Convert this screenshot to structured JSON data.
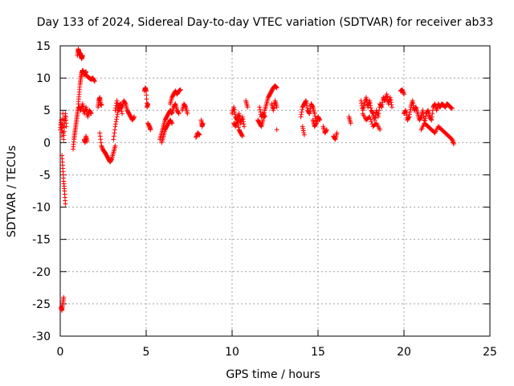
{
  "chart_data": {
    "type": "scatter",
    "title": "Day 133 of 2024, Sidereal Day-to-day VTEC variation (SDTVAR) for receiver ab33",
    "xlabel": "GPS time / hours",
    "ylabel": "SDTVAR / TECUs",
    "xlim": [
      0,
      25
    ],
    "ylim": [
      -30,
      15
    ],
    "xticks": [
      "0",
      "5",
      "10",
      "15",
      "20",
      "25"
    ],
    "yticks": [
      "15",
      "10",
      "5",
      "0",
      "-5",
      "-10",
      "-15",
      "-20",
      "-25",
      "-30"
    ],
    "grid": true,
    "marker": "+",
    "color": "#ff0000",
    "series": [
      {
        "name": "SDTVAR",
        "segments": [
          {
            "x": [
              0.0,
              0.05,
              0.1,
              0.15,
              0.2,
              0.25,
              0.3,
              0.35
            ],
            "y": [
              2.0,
              3.5,
              1.0,
              4.5,
              0.5,
              3.0,
              4.5,
              2.5
            ]
          },
          {
            "x": [
              0.1,
              0.15,
              0.2,
              0.25,
              0.3
            ],
            "y": [
              -2.0,
              -4.0,
              -6.0,
              -7.5,
              -9.5
            ]
          },
          {
            "x": [
              0.05,
              0.1,
              0.15,
              0.2
            ],
            "y": [
              -25.5,
              -26.0,
              -25.0,
              -24.0
            ]
          },
          {
            "x": [
              0.75,
              0.8,
              0.85,
              0.9,
              0.95,
              1.0,
              1.05
            ],
            "y": [
              -1.0,
              0.5,
              1.5,
              2.5,
              3.5,
              4.5,
              5.5
            ]
          },
          {
            "x": [
              1.0,
              1.05,
              1.1,
              1.15,
              1.2,
              1.25,
              1.3
            ],
            "y": [
              13.5,
              14.5,
              14.0,
              13.8,
              13.5,
              13.0,
              13.5
            ]
          },
          {
            "x": [
              1.05,
              1.1,
              1.15,
              1.2,
              1.25,
              1.3,
              1.35,
              1.4,
              1.45,
              1.5
            ],
            "y": [
              6.0,
              7.5,
              9.0,
              10.0,
              10.8,
              11.2,
              11.0,
              10.5,
              10.8,
              11.0
            ]
          },
          {
            "x": [
              1.5,
              1.6,
              1.7,
              1.8,
              1.9,
              2.0
            ],
            "y": [
              10.5,
              10.2,
              10.0,
              9.8,
              10.0,
              9.5
            ]
          },
          {
            "x": [
              1.1,
              1.2,
              1.3,
              1.4,
              1.5,
              1.6,
              1.7,
              1.8
            ],
            "y": [
              5.5,
              5.0,
              6.0,
              4.5,
              5.5,
              4.0,
              5.0,
              4.5
            ]
          },
          {
            "x": [
              1.4,
              1.45,
              1.5,
              1.55
            ],
            "y": [
              0.5,
              0.0,
              1.0,
              0.2
            ]
          },
          {
            "x": [
              2.2,
              2.25,
              2.3,
              2.35,
              2.4
            ],
            "y": [
              5.5,
              6.5,
              7.0,
              6.0,
              5.8
            ]
          },
          {
            "x": [
              2.3,
              2.4,
              2.5,
              2.6
            ],
            "y": [
              1.5,
              -0.5,
              -1.2,
              -1.5
            ]
          },
          {
            "x": [
              2.6,
              2.7,
              2.8,
              2.9,
              3.0,
              3.1,
              3.2
            ],
            "y": [
              -1.5,
              -2.0,
              -2.5,
              -3.0,
              -2.5,
              -1.5,
              -0.5
            ]
          },
          {
            "x": [
              3.1,
              3.2,
              3.3,
              3.4,
              3.5,
              3.6,
              3.7,
              3.8,
              3.9,
              4.0,
              4.1,
              4.2,
              4.3
            ],
            "y": [
              0.5,
              2.5,
              4.0,
              5.5,
              6.0,
              5.5,
              6.5,
              6.0,
              5.0,
              4.5,
              4.0,
              3.5,
              4.0
            ]
          },
          {
            "x": [
              3.2,
              3.3,
              3.4,
              3.5,
              3.6
            ],
            "y": [
              5.0,
              6.5,
              5.0,
              6.0,
              4.5
            ]
          },
          {
            "x": [
              4.9,
              4.95,
              5.0,
              5.05,
              5.1
            ],
            "y": [
              8.0,
              8.5,
              8.0,
              5.5,
              6.0
            ]
          },
          {
            "x": [
              5.1,
              5.2,
              5.25
            ],
            "y": [
              3.0,
              2.5,
              2.0
            ]
          },
          {
            "x": [
              5.8,
              5.9,
              6.0,
              6.1,
              6.2,
              6.3,
              6.4,
              6.5,
              6.6,
              6.7,
              6.8,
              6.9
            ],
            "y": [
              0.5,
              1.5,
              2.5,
              3.5,
              4.0,
              4.5,
              5.0,
              4.5,
              5.5,
              6.0,
              5.0,
              4.5
            ]
          },
          {
            "x": [
              5.9,
              6.0,
              6.1,
              6.2,
              6.3,
              6.4,
              6.5
            ],
            "y": [
              0.0,
              1.0,
              2.0,
              2.5,
              3.0,
              3.5,
              3.0
            ]
          },
          {
            "x": [
              6.4,
              6.5,
              6.6,
              6.7,
              6.8,
              6.9,
              7.0
            ],
            "y": [
              6.0,
              7.0,
              7.5,
              8.0,
              7.5,
              8.0,
              8.2
            ]
          },
          {
            "x": [
              7.1,
              7.2,
              7.3,
              7.4
            ],
            "y": [
              5.0,
              6.0,
              5.5,
              4.5
            ]
          },
          {
            "x": [
              7.9,
              8.0,
              8.1
            ],
            "y": [
              0.8,
              1.5,
              1.2
            ]
          },
          {
            "x": [
              8.2,
              8.25,
              8.3
            ],
            "y": [
              3.5,
              2.5,
              3.0
            ]
          },
          {
            "x": [
              10.0,
              10.1,
              10.2,
              10.3,
              10.4,
              10.5,
              10.6,
              10.7
            ],
            "y": [
              4.5,
              5.5,
              4.0,
              3.5,
              4.5,
              3.0,
              4.0,
              2.5
            ]
          },
          {
            "x": [
              10.1,
              10.2,
              10.3,
              10.4,
              10.5,
              10.6
            ],
            "y": [
              3.0,
              2.5,
              3.5,
              2.0,
              1.5,
              1.0
            ]
          },
          {
            "x": [
              10.8,
              10.9
            ],
            "y": [
              6.5,
              5.5
            ]
          },
          {
            "x": [
              11.5,
              11.6,
              11.7,
              11.8,
              11.9,
              12.0,
              12.1,
              12.2,
              12.3,
              12.4,
              12.5,
              12.6
            ],
            "y": [
              3.5,
              3.0,
              2.5,
              3.5,
              5.0,
              6.0,
              7.0,
              7.5,
              8.0,
              8.5,
              8.8,
              8.5
            ]
          },
          {
            "x": [
              11.6,
              11.7,
              11.8,
              11.9
            ],
            "y": [
              5.5,
              4.0,
              4.5,
              4.0
            ]
          },
          {
            "x": [
              12.3,
              12.4,
              12.5,
              12.6
            ],
            "y": [
              6.0,
              5.0,
              6.5,
              5.5
            ]
          },
          {
            "x": [
              12.6
            ],
            "y": [
              2.0
            ]
          },
          {
            "x": [
              14.0,
              14.1,
              14.2,
              14.3,
              14.4,
              14.5,
              14.6,
              14.7,
              14.8,
              14.9,
              15.0,
              15.1
            ],
            "y": [
              4.0,
              5.5,
              6.0,
              6.5,
              5.0,
              4.5,
              6.0,
              5.5,
              4.5,
              3.0,
              4.0,
              3.5
            ]
          },
          {
            "x": [
              14.1,
              14.2
            ],
            "y": [
              2.5,
              1.2
            ]
          },
          {
            "x": [
              14.7,
              14.8,
              14.9
            ],
            "y": [
              3.5,
              2.5,
              3.0
            ]
          },
          {
            "x": [
              15.3,
              15.4,
              15.5
            ],
            "y": [
              2.5,
              1.5,
              2.0
            ]
          },
          {
            "x": [
              15.9,
              16.0,
              16.1
            ],
            "y": [
              1.0,
              0.5,
              1.5
            ]
          },
          {
            "x": [
              16.8,
              16.9
            ],
            "y": [
              4.0,
              3.0
            ]
          },
          {
            "x": [
              17.5,
              17.6,
              17.7,
              17.8,
              17.9,
              18.0,
              18.1,
              18.2,
              18.3,
              18.4,
              18.5,
              18.6,
              18.7,
              18.8,
              18.9,
              19.0,
              19.1,
              19.2,
              19.3
            ],
            "y": [
              6.5,
              5.0,
              6.0,
              7.0,
              5.5,
              6.5,
              5.0,
              4.5,
              3.5,
              5.0,
              4.0,
              6.0,
              5.5,
              7.0,
              6.5,
              7.5,
              6.0,
              7.0,
              5.5
            ]
          },
          {
            "x": [
              17.6,
              17.8,
              18.0,
              18.2,
              18.4,
              18.6
            ],
            "y": [
              4.5,
              3.5,
              4.0,
              2.5,
              3.0,
              2.0
            ]
          },
          {
            "x": [
              19.8,
              19.9,
              20.0
            ],
            "y": [
              8.0,
              8.2,
              7.5
            ]
          },
          {
            "x": [
              20.0,
              20.1,
              20.2,
              20.3,
              20.4,
              20.5,
              20.6,
              20.7,
              20.8,
              20.9,
              21.0,
              21.1,
              21.2,
              21.3,
              21.4,
              21.5,
              21.6,
              21.7,
              21.8,
              21.9,
              22.0,
              22.1,
              22.2,
              22.3,
              22.4,
              22.5,
              22.6,
              22.7,
              22.8
            ],
            "y": [
              4.5,
              5.0,
              3.5,
              4.0,
              5.5,
              6.5,
              5.0,
              5.5,
              4.5,
              3.5,
              4.0,
              5.0,
              3.0,
              4.5,
              5.0,
              4.0,
              3.5,
              5.5,
              6.0,
              5.0,
              6.0,
              5.5,
              6.0,
              5.8,
              5.5,
              6.0,
              5.8,
              5.5,
              5.3
            ]
          },
          {
            "x": [
              21.0,
              21.2,
              21.4,
              21.6,
              21.8,
              22.0,
              22.2,
              22.4,
              22.6,
              22.8,
              22.9
            ],
            "y": [
              2.0,
              3.0,
              2.5,
              2.0,
              1.5,
              2.5,
              2.0,
              1.5,
              1.0,
              0.5,
              -0.2
            ]
          }
        ]
      }
    ]
  }
}
